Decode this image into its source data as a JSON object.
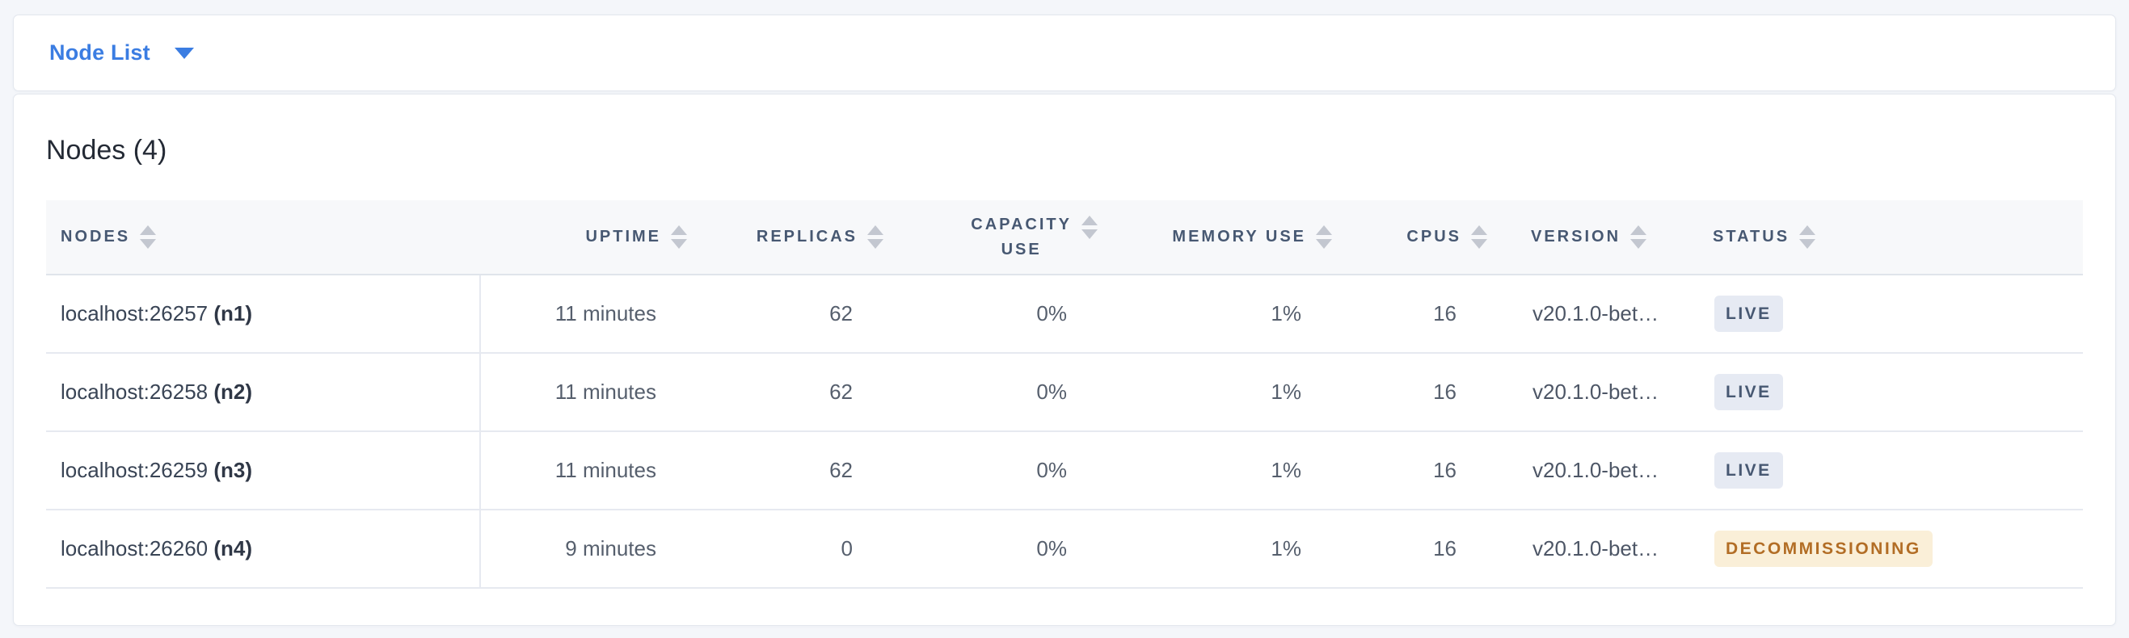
{
  "topbar": {
    "dropdown_label": "Node List"
  },
  "card": {
    "title": "Nodes (4)"
  },
  "table": {
    "columns": [
      {
        "key": "nodes",
        "label": "NODES",
        "align": "left",
        "sortable": true
      },
      {
        "key": "uptime",
        "label": "UPTIME",
        "align": "right",
        "sortable": true
      },
      {
        "key": "replicas",
        "label": "REPLICAS",
        "align": "right",
        "sortable": true
      },
      {
        "key": "capacity_use",
        "label": "CAPACITY USE",
        "label_lines": [
          "CAPACITY",
          "USE"
        ],
        "align": "right",
        "sortable": true
      },
      {
        "key": "memory_use",
        "label": "MEMORY USE",
        "align": "right",
        "sortable": true
      },
      {
        "key": "cpus",
        "label": "CPUS",
        "align": "right",
        "sortable": true
      },
      {
        "key": "version",
        "label": "VERSION",
        "align": "left",
        "sortable": true
      },
      {
        "key": "status",
        "label": "STATUS",
        "align": "left",
        "sortable": true
      }
    ],
    "rows": [
      {
        "address": "localhost:26257",
        "node_id": "(n1)",
        "uptime": "11 minutes",
        "replicas": "62",
        "capacity_use": "0%",
        "memory_use": "1%",
        "cpus": "16",
        "version": "v20.1.0-bet…",
        "status": "LIVE",
        "status_type": "live"
      },
      {
        "address": "localhost:26258",
        "node_id": "(n2)",
        "uptime": "11 minutes",
        "replicas": "62",
        "capacity_use": "0%",
        "memory_use": "1%",
        "cpus": "16",
        "version": "v20.1.0-bet…",
        "status": "LIVE",
        "status_type": "live"
      },
      {
        "address": "localhost:26259",
        "node_id": "(n3)",
        "uptime": "11 minutes",
        "replicas": "62",
        "capacity_use": "0%",
        "memory_use": "1%",
        "cpus": "16",
        "version": "v20.1.0-bet…",
        "status": "LIVE",
        "status_type": "live"
      },
      {
        "address": "localhost:26260",
        "node_id": "(n4)",
        "uptime": "9 minutes",
        "replicas": "0",
        "capacity_use": "0%",
        "memory_use": "1%",
        "cpus": "16",
        "version": "v20.1.0-bet…",
        "status": "DECOMMISSIONING",
        "status_type": "decommissioning"
      }
    ]
  },
  "colors": {
    "accent_blue": "#3b7de2",
    "live_badge_bg": "#e6eaf3",
    "live_badge_text": "#475872",
    "decommissioning_badge_bg": "#faefd8",
    "decommissioning_badge_text": "#b26d25",
    "header_bg": "#f7f8fa",
    "page_bg": "#f4f6fa"
  }
}
